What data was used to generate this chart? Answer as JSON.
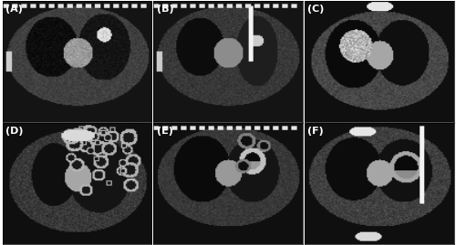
{
  "labels": [
    "(A)",
    "(B)",
    "(C)",
    "(D)",
    "(E)",
    "(F)"
  ],
  "grid_rows": 2,
  "grid_cols": 3,
  "figure_width": 5.0,
  "figure_height": 2.69,
  "background_color": "#ffffff",
  "border_color": "#000000",
  "label_color": "#ffffff",
  "label_fontsize": 8,
  "label_bg_color": "#000000",
  "subplots_hspace": 0.02,
  "subplots_wspace": 0.02
}
